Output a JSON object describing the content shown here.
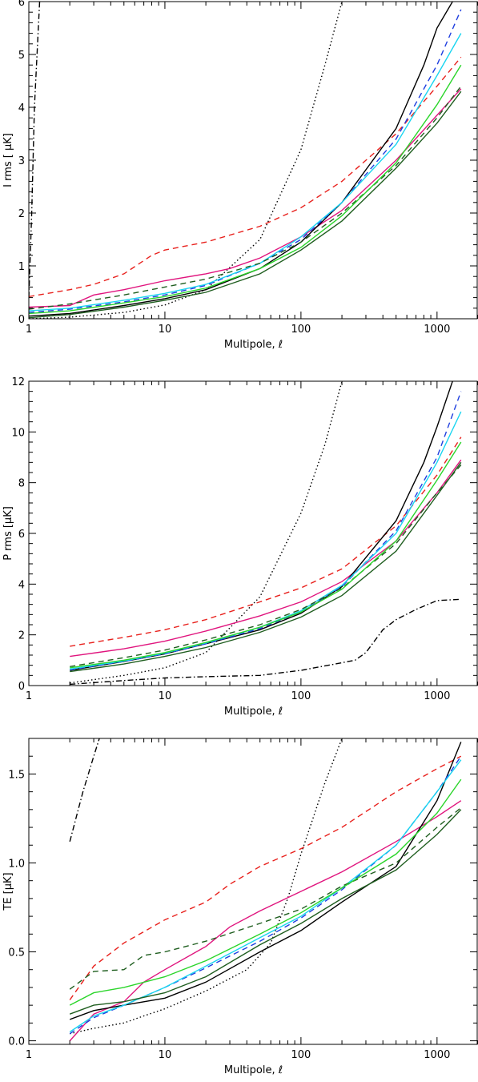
{
  "chart_data": [
    {
      "type": "line",
      "xscale": "log",
      "xlim": [
        1,
        2000
      ],
      "ylim": [
        0,
        6
      ],
      "xlabel": "Multipole, ℓ",
      "ylabel": "I rms [ μK]",
      "xticks": [
        1,
        10,
        100,
        1000
      ],
      "xtick_labels": [
        "1",
        "10",
        "100",
        "1000"
      ],
      "yticks": [
        0,
        1,
        2,
        3,
        4,
        5,
        6
      ],
      "ytick_labels": [
        "0",
        "1",
        "2",
        "3",
        "4",
        "5",
        "6"
      ],
      "grid": false,
      "series": [
        {
          "color": "#000000",
          "dash": "dashdot",
          "x": [
            1,
            1.05,
            1.1,
            1.2
          ],
          "y": [
            0.4,
            2.0,
            4.0,
            6.0
          ]
        },
        {
          "color": "#000000",
          "dash": "dotted",
          "x": [
            1,
            2,
            5,
            10,
            20,
            50,
            100,
            150,
            200
          ],
          "y": [
            0.0,
            0.03,
            0.12,
            0.26,
            0.55,
            1.5,
            3.2,
            4.8,
            6.0
          ]
        },
        {
          "color": "#e8211d",
          "dash": "dashed",
          "x": [
            1,
            2,
            3,
            5,
            8,
            10,
            20,
            50,
            100,
            200,
            500,
            1000,
            1500
          ],
          "y": [
            0.42,
            0.55,
            0.65,
            0.85,
            1.2,
            1.3,
            1.45,
            1.75,
            2.1,
            2.6,
            3.5,
            4.4,
            4.95
          ]
        },
        {
          "color": "#e0157e",
          "dash": "solid",
          "x": [
            1,
            2,
            3,
            5,
            10,
            20,
            30,
            50,
            100,
            200,
            500,
            1000,
            1500
          ],
          "y": [
            0.22,
            0.25,
            0.45,
            0.55,
            0.72,
            0.85,
            0.95,
            1.15,
            1.55,
            2.05,
            3.0,
            3.85,
            4.35
          ]
        },
        {
          "color": "#000000",
          "dash": "solid",
          "x": [
            1,
            2,
            5,
            10,
            20,
            50,
            100,
            200,
            500,
            800,
            1000,
            1300
          ],
          "y": [
            0.05,
            0.1,
            0.25,
            0.38,
            0.55,
            0.95,
            1.45,
            2.2,
            3.6,
            4.8,
            5.5,
            6.0
          ]
        },
        {
          "color": "#1f3fdf",
          "dash": "dashed",
          "x": [
            1,
            2,
            5,
            10,
            20,
            50,
            100,
            200,
            500,
            1000,
            1500
          ],
          "y": [
            0.12,
            0.18,
            0.32,
            0.45,
            0.63,
            1.05,
            1.5,
            2.2,
            3.4,
            4.8,
            5.85
          ]
        },
        {
          "color": "#19d5f0",
          "dash": "solid",
          "x": [
            1,
            2,
            5,
            10,
            20,
            50,
            100,
            200,
            500,
            1000,
            1500
          ],
          "y": [
            0.15,
            0.2,
            0.35,
            0.48,
            0.65,
            1.05,
            1.55,
            2.2,
            3.3,
            4.6,
            5.4
          ]
        },
        {
          "color": "#1f5e1f",
          "dash": "dashed",
          "x": [
            1,
            2,
            5,
            10,
            20,
            50,
            100,
            200,
            500,
            1000,
            1500
          ],
          "y": [
            0.18,
            0.28,
            0.45,
            0.6,
            0.75,
            1.05,
            1.45,
            2.0,
            2.9,
            3.8,
            4.4
          ]
        },
        {
          "color": "#2bd52b",
          "dash": "solid",
          "x": [
            1,
            2,
            5,
            10,
            20,
            50,
            100,
            200,
            500,
            1000,
            1500
          ],
          "y": [
            0.1,
            0.15,
            0.3,
            0.42,
            0.58,
            0.95,
            1.35,
            1.95,
            2.95,
            4.05,
            4.8
          ]
        },
        {
          "color": "#1f5e1f",
          "dash": "solid",
          "x": [
            1,
            2,
            5,
            10,
            20,
            50,
            100,
            200,
            500,
            1000,
            1500
          ],
          "y": [
            0.02,
            0.08,
            0.22,
            0.35,
            0.5,
            0.85,
            1.3,
            1.85,
            2.85,
            3.7,
            4.3
          ]
        }
      ]
    },
    {
      "type": "line",
      "xscale": "log",
      "xlim": [
        1,
        2000
      ],
      "ylim": [
        0,
        12
      ],
      "xlabel": "Multipole, ℓ",
      "ylabel": "P rms [μK]",
      "xticks": [
        1,
        10,
        100,
        1000
      ],
      "xtick_labels": [
        "1",
        "10",
        "100",
        "1000"
      ],
      "yticks": [
        0,
        2,
        4,
        6,
        8,
        10,
        12
      ],
      "ytick_labels": [
        "0",
        "2",
        "4",
        "6",
        "8",
        "10",
        "12"
      ],
      "grid": false,
      "series": [
        {
          "color": "#000000",
          "dash": "dashdot",
          "x": [
            2,
            5,
            10,
            20,
            50,
            100,
            200,
            250,
            300,
            400,
            500,
            700,
            1000,
            1500
          ],
          "y": [
            0.05,
            0.2,
            0.3,
            0.35,
            0.4,
            0.6,
            0.9,
            1.0,
            1.3,
            2.2,
            2.6,
            3.0,
            3.35,
            3.4
          ]
        },
        {
          "color": "#000000",
          "dash": "dotted",
          "x": [
            2,
            5,
            10,
            20,
            50,
            100,
            150,
            200
          ],
          "y": [
            0.1,
            0.4,
            0.7,
            1.3,
            3.5,
            6.8,
            9.5,
            12.0
          ]
        },
        {
          "color": "#e8211d",
          "dash": "dashed",
          "x": [
            2,
            5,
            10,
            20,
            50,
            100,
            200,
            500,
            1000,
            1500
          ],
          "y": [
            1.55,
            1.9,
            2.2,
            2.6,
            3.3,
            3.85,
            4.6,
            6.3,
            8.3,
            9.8
          ]
        },
        {
          "color": "#e0157e",
          "dash": "solid",
          "x": [
            2,
            5,
            10,
            20,
            50,
            100,
            200,
            500,
            1000,
            1500
          ],
          "y": [
            1.15,
            1.45,
            1.75,
            2.15,
            2.75,
            3.3,
            4.1,
            5.7,
            7.6,
            8.9
          ]
        },
        {
          "color": "#000000",
          "dash": "solid",
          "x": [
            2,
            5,
            10,
            20,
            50,
            100,
            200,
            500,
            800,
            1000,
            1300
          ],
          "y": [
            0.6,
            0.95,
            1.25,
            1.65,
            2.2,
            2.85,
            3.9,
            6.5,
            8.8,
            10.2,
            12.0
          ]
        },
        {
          "color": "#1f3fdf",
          "dash": "dashed",
          "x": [
            2,
            5,
            10,
            20,
            50,
            100,
            200,
            500,
            1000,
            1500
          ],
          "y": [
            0.62,
            0.95,
            1.25,
            1.65,
            2.25,
            2.9,
            3.9,
            6.1,
            9.0,
            11.6
          ]
        },
        {
          "color": "#19d5f0",
          "dash": "solid",
          "x": [
            2,
            5,
            10,
            20,
            50,
            100,
            200,
            500,
            1000,
            1500
          ],
          "y": [
            0.65,
            0.97,
            1.28,
            1.68,
            2.3,
            2.95,
            3.95,
            6.0,
            8.8,
            10.8
          ]
        },
        {
          "color": "#1f5e1f",
          "dash": "dashed",
          "x": [
            2,
            5,
            10,
            20,
            50,
            100,
            200,
            500,
            1000,
            1500
          ],
          "y": [
            0.75,
            1.1,
            1.4,
            1.8,
            2.4,
            3.0,
            3.85,
            5.6,
            7.6,
            8.7
          ]
        },
        {
          "color": "#2bd52b",
          "dash": "solid",
          "x": [
            2,
            5,
            10,
            20,
            50,
            100,
            200,
            500,
            1000,
            1500
          ],
          "y": [
            0.7,
            1.0,
            1.3,
            1.7,
            2.3,
            2.9,
            3.8,
            5.7,
            8.1,
            9.6
          ]
        },
        {
          "color": "#1f5e1f",
          "dash": "solid",
          "x": [
            2,
            5,
            10,
            20,
            50,
            100,
            200,
            500,
            1000,
            1500
          ],
          "y": [
            0.55,
            0.85,
            1.15,
            1.5,
            2.1,
            2.7,
            3.55,
            5.3,
            7.5,
            8.8
          ]
        }
      ]
    },
    {
      "type": "line",
      "xscale": "log",
      "xlim": [
        1,
        2000
      ],
      "ylim": [
        -0.02,
        1.7
      ],
      "xlabel": "Multipole, ℓ",
      "ylabel": "TE [μK]",
      "xticks": [
        1,
        10,
        100,
        1000
      ],
      "xtick_labels": [
        "1",
        "10",
        "100",
        "1000"
      ],
      "yticks": [
        0.0,
        0.5,
        1.0,
        1.5
      ],
      "ytick_labels": [
        "0.0",
        "0.5",
        "1.0",
        "1.5"
      ],
      "grid": false,
      "series": [
        {
          "color": "#000000",
          "dash": "dashdot",
          "x": [
            2,
            2.5,
            3,
            3.3
          ],
          "y": [
            1.12,
            1.4,
            1.6,
            1.7
          ]
        },
        {
          "color": "#000000",
          "dash": "dotted",
          "x": [
            2,
            3,
            5,
            7,
            10,
            20,
            40,
            60,
            80,
            100,
            150,
            200
          ],
          "y": [
            0.04,
            0.07,
            0.1,
            0.14,
            0.18,
            0.28,
            0.4,
            0.55,
            0.8,
            1.05,
            1.45,
            1.7
          ]
        },
        {
          "color": "#e8211d",
          "dash": "dashed",
          "x": [
            2,
            3,
            5,
            10,
            20,
            30,
            50,
            100,
            200,
            500,
            1000,
            1500
          ],
          "y": [
            0.23,
            0.42,
            0.55,
            0.68,
            0.78,
            0.88,
            0.98,
            1.08,
            1.2,
            1.4,
            1.53,
            1.6
          ]
        },
        {
          "color": "#e0157e",
          "dash": "solid",
          "x": [
            2,
            3,
            5,
            7,
            10,
            20,
            30,
            50,
            100,
            200,
            500,
            1000,
            1500
          ],
          "y": [
            0.0,
            0.15,
            0.22,
            0.33,
            0.4,
            0.53,
            0.64,
            0.73,
            0.84,
            0.95,
            1.12,
            1.26,
            1.35
          ]
        },
        {
          "color": "#000000",
          "dash": "solid",
          "x": [
            2,
            3,
            5,
            10,
            20,
            50,
            100,
            200,
            500,
            1000,
            1500
          ],
          "y": [
            0.12,
            0.17,
            0.2,
            0.24,
            0.33,
            0.5,
            0.62,
            0.78,
            0.98,
            1.35,
            1.68
          ]
        },
        {
          "color": "#1f3fdf",
          "dash": "dashed",
          "x": [
            2,
            3,
            5,
            10,
            20,
            50,
            100,
            200,
            500,
            1000,
            1500
          ],
          "y": [
            0.04,
            0.13,
            0.2,
            0.3,
            0.41,
            0.56,
            0.69,
            0.85,
            1.1,
            1.4,
            1.6
          ]
        },
        {
          "color": "#19d5f0",
          "dash": "solid",
          "x": [
            2,
            3,
            5,
            10,
            20,
            50,
            100,
            200,
            500,
            1000,
            1500
          ],
          "y": [
            0.05,
            0.14,
            0.2,
            0.3,
            0.42,
            0.58,
            0.7,
            0.86,
            1.1,
            1.4,
            1.58
          ]
        },
        {
          "color": "#1f5e1f",
          "dash": "dashed",
          "x": [
            2,
            3,
            5,
            7,
            10,
            20,
            50,
            100,
            200,
            500,
            1000,
            1500
          ],
          "y": [
            0.29,
            0.39,
            0.4,
            0.48,
            0.5,
            0.56,
            0.66,
            0.74,
            0.87,
            1.0,
            1.2,
            1.31
          ]
        },
        {
          "color": "#2bd52b",
          "dash": "solid",
          "x": [
            2,
            3,
            5,
            10,
            20,
            50,
            100,
            200,
            500,
            1000,
            1500
          ],
          "y": [
            0.2,
            0.27,
            0.3,
            0.36,
            0.45,
            0.6,
            0.72,
            0.86,
            1.05,
            1.28,
            1.47
          ]
        },
        {
          "color": "#1f5e1f",
          "dash": "solid",
          "x": [
            2,
            3,
            5,
            10,
            20,
            50,
            100,
            200,
            500,
            1000,
            1500
          ],
          "y": [
            0.15,
            0.2,
            0.22,
            0.27,
            0.36,
            0.54,
            0.66,
            0.8,
            0.96,
            1.16,
            1.3
          ]
        }
      ]
    }
  ]
}
